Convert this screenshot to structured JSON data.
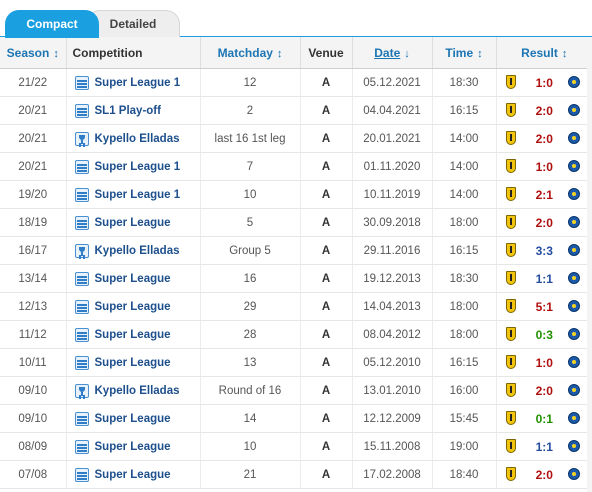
{
  "tabs": {
    "compact": "Compact",
    "detailed": "Detailed"
  },
  "columns": {
    "season": "Season",
    "competition": "Competition",
    "matchday": "Matchday",
    "venue": "Venue",
    "date": "Date",
    "time": "Time",
    "result": "Result"
  },
  "sort_icons": {
    "sortable": "↕",
    "descending": "↓"
  },
  "colors": {
    "accent": "#1a9fe0",
    "loss": "#b00f0f",
    "win": "#239000",
    "draw": "#244ea0"
  },
  "rows": [
    {
      "season": "21/22",
      "competition": "Super League 1",
      "comp_icon": "league-icon",
      "matchday": "12",
      "venue": "A",
      "date": "05.12.2021",
      "time": "18:30",
      "result": "1:0",
      "outcome": "loss"
    },
    {
      "season": "20/21",
      "competition": "SL1 Play-off",
      "comp_icon": "league-icon",
      "matchday": "2",
      "venue": "A",
      "date": "04.04.2021",
      "time": "16:15",
      "result": "2:0",
      "outcome": "loss"
    },
    {
      "season": "20/21",
      "competition": "Kypello Elladas",
      "comp_icon": "cup-icon",
      "matchday": "last 16 1st leg",
      "venue": "A",
      "date": "20.01.2021",
      "time": "14:00",
      "result": "2:0",
      "outcome": "loss"
    },
    {
      "season": "20/21",
      "competition": "Super League 1",
      "comp_icon": "league-icon",
      "matchday": "7",
      "venue": "A",
      "date": "01.11.2020",
      "time": "14:00",
      "result": "1:0",
      "outcome": "loss"
    },
    {
      "season": "19/20",
      "competition": "Super League 1",
      "comp_icon": "league-icon",
      "matchday": "10",
      "venue": "A",
      "date": "10.11.2019",
      "time": "14:00",
      "result": "2:1",
      "outcome": "loss"
    },
    {
      "season": "18/19",
      "competition": "Super League",
      "comp_icon": "league-icon",
      "matchday": "5",
      "venue": "A",
      "date": "30.09.2018",
      "time": "18:00",
      "result": "2:0",
      "outcome": "loss"
    },
    {
      "season": "16/17",
      "competition": "Kypello Elladas",
      "comp_icon": "cup-icon",
      "matchday": "Group 5",
      "venue": "A",
      "date": "29.11.2016",
      "time": "16:15",
      "result": "3:3",
      "outcome": "draw"
    },
    {
      "season": "13/14",
      "competition": "Super League",
      "comp_icon": "league-icon",
      "matchday": "16",
      "venue": "A",
      "date": "19.12.2013",
      "time": "18:30",
      "result": "1:1",
      "outcome": "draw"
    },
    {
      "season": "12/13",
      "competition": "Super League",
      "comp_icon": "league-icon",
      "matchday": "29",
      "venue": "A",
      "date": "14.04.2013",
      "time": "18:00",
      "result": "5:1",
      "outcome": "loss"
    },
    {
      "season": "11/12",
      "competition": "Super League",
      "comp_icon": "league-icon",
      "matchday": "28",
      "venue": "A",
      "date": "08.04.2012",
      "time": "18:00",
      "result": "0:3",
      "outcome": "win"
    },
    {
      "season": "10/11",
      "competition": "Super League",
      "comp_icon": "league-icon",
      "matchday": "13",
      "venue": "A",
      "date": "05.12.2010",
      "time": "16:15",
      "result": "1:0",
      "outcome": "loss"
    },
    {
      "season": "09/10",
      "competition": "Kypello Elladas",
      "comp_icon": "cup-icon",
      "matchday": "Round of 16",
      "venue": "A",
      "date": "13.01.2010",
      "time": "16:00",
      "result": "2:0",
      "outcome": "loss"
    },
    {
      "season": "09/10",
      "competition": "Super League",
      "comp_icon": "league-icon",
      "matchday": "14",
      "venue": "A",
      "date": "12.12.2009",
      "time": "15:45",
      "result": "0:1",
      "outcome": "win"
    },
    {
      "season": "08/09",
      "competition": "Super League",
      "comp_icon": "league-icon",
      "matchday": "10",
      "venue": "A",
      "date": "15.11.2008",
      "time": "19:00",
      "result": "1:1",
      "outcome": "draw"
    },
    {
      "season": "07/08",
      "competition": "Super League",
      "comp_icon": "league-icon",
      "matchday": "21",
      "venue": "A",
      "date": "17.02.2008",
      "time": "18:40",
      "result": "2:0",
      "outcome": "loss"
    }
  ]
}
